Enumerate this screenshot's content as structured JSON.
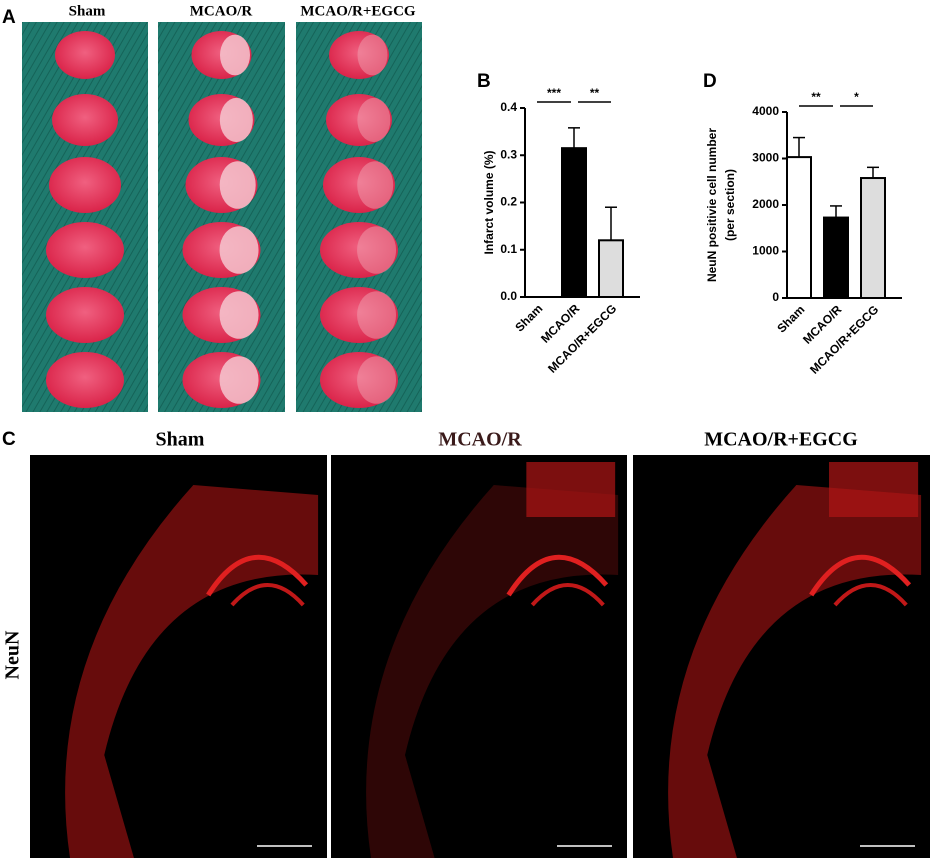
{
  "panel_labels": [
    "A",
    "B",
    "C",
    "D"
  ],
  "panel_a": {
    "columns": [
      "Sham",
      "MCAO/R",
      "MCAO/R+EGCG"
    ]
  },
  "panel_c": {
    "columns": [
      "Sham",
      "MCAO/R",
      "MCAO/R+EGCG"
    ],
    "row_label": "NeuN"
  },
  "chart_data": [
    {
      "type": "bar",
      "ylabel": [
        "Infarct volume (%)"
      ],
      "categories": [
        "Sham",
        "MCAO/R",
        "MCAO/R+EGCG"
      ],
      "values": [
        0,
        0.315,
        0.12
      ],
      "errors": [
        0,
        0.043,
        0.07
      ],
      "colors": [
        "#ffffff",
        "#000000",
        "#dddddd"
      ],
      "ylim": [
        0,
        0.4
      ],
      "yticks": [
        {
          "value": 0,
          "label": "0.0"
        },
        0.1,
        0.2,
        0.3,
        0.4
      ],
      "significance": [
        {
          "label": "***",
          "pair": [
            0,
            1
          ]
        },
        {
          "label": "**",
          "pair": [
            1,
            2
          ]
        }
      ]
    },
    {
      "type": "bar",
      "ylabel": [
        "NeuN positivie cell number",
        "(per section)"
      ],
      "categories": [
        "Sham",
        "MCAO/R",
        "MCAO/R+EGCG"
      ],
      "values": [
        3030,
        1730,
        2580
      ],
      "errors": [
        420,
        250,
        230
      ],
      "colors": [
        "#ffffff",
        "#000000",
        "#dddddd"
      ],
      "ylim": [
        0,
        4000
      ],
      "yticks": [
        0,
        1000,
        2000,
        3000,
        4000
      ],
      "significance": [
        {
          "label": "**",
          "pair": [
            0,
            1
          ]
        },
        {
          "label": "*",
          "pair": [
            1,
            2
          ]
        }
      ]
    }
  ]
}
